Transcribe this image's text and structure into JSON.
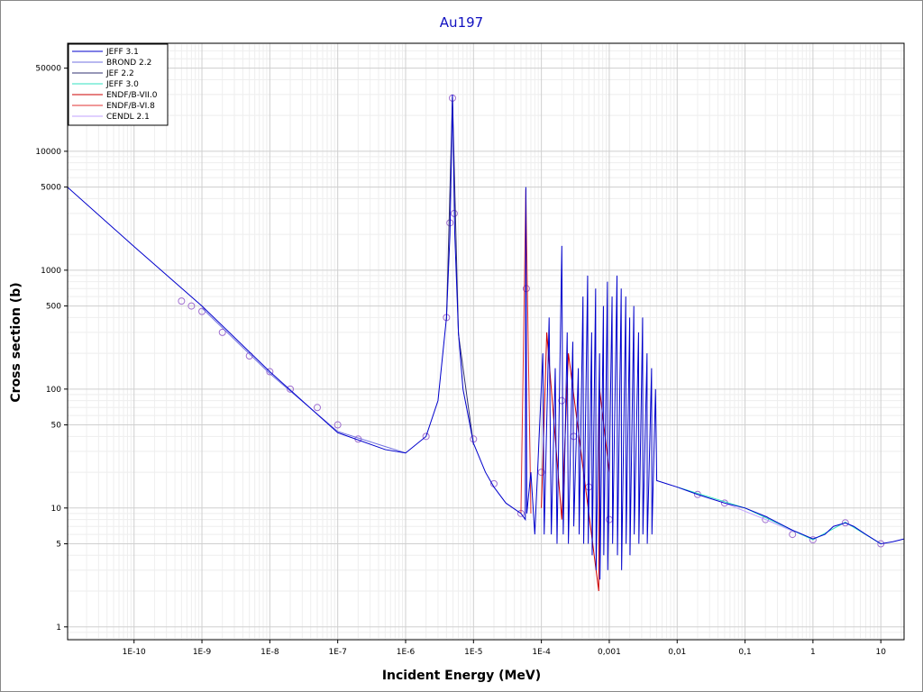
{
  "chart_data": {
    "type": "line",
    "title": "Au197",
    "x_label": "Incident Energy (MeV)",
    "y_label": "Cross section (b)",
    "log_x": true,
    "log_y": true,
    "grid": true,
    "legend": "top-left",
    "xlim": [
      1.05e-11,
      22
    ],
    "ylim": [
      0.78,
      81000
    ],
    "xticks": [
      {
        "value": 1e-10,
        "label": "1E-10"
      },
      {
        "value": 1e-09,
        "label": "1E-9"
      },
      {
        "value": 1e-08,
        "label": "1E-8"
      },
      {
        "value": 1e-07,
        "label": "1E-7"
      },
      {
        "value": 1e-06,
        "label": "1E-6"
      },
      {
        "value": 1e-05,
        "label": "1E-5"
      },
      {
        "value": 0.0001,
        "label": "1E-4"
      },
      {
        "value": 0.001,
        "label": "0,001"
      },
      {
        "value": 0.01,
        "label": "0,01"
      },
      {
        "value": 0.1,
        "label": "0,1"
      },
      1,
      10
    ],
    "yticks": [
      1,
      5,
      10,
      50,
      100,
      500,
      1000,
      5000,
      10000,
      50000
    ],
    "series": [
      {
        "name": "JEFF 3.1",
        "color": "#0000cc",
        "x": [
          1.05e-11,
          1e-10,
          1e-09,
          1e-08,
          1e-07,
          5e-07,
          1e-06,
          2e-06,
          3e-06,
          4e-06,
          4.5e-06,
          4.8e-06,
          4.9e-06,
          5e-06,
          5.3e-06,
          6e-06,
          7e-06,
          1e-05,
          1.5e-05,
          2e-05,
          3e-05,
          5e-05,
          5.8e-05,
          5.9e-05,
          6.1e-05,
          7e-05,
          8e-05,
          0.000105,
          0.00011,
          0.00013,
          0.00014,
          0.00016,
          0.00017,
          0.0002,
          0.00021,
          0.00024,
          0.00025,
          0.00029,
          0.0003,
          0.00035,
          0.00036,
          0.00041,
          0.00042,
          0.00048,
          0.00049,
          0.00055,
          0.00056,
          0.00063,
          0.00064,
          0.00072,
          0.00073,
          0.00082,
          0.00083,
          0.00094,
          0.00095,
          0.0011,
          0.00112,
          0.0013,
          0.00132,
          0.0015,
          0.00152,
          0.00175,
          0.00177,
          0.002,
          0.00202,
          0.0023,
          0.00233,
          0.0027,
          0.00273,
          0.0031,
          0.00313,
          0.0036,
          0.00363,
          0.0042,
          0.00425,
          0.0048,
          0.005,
          0.007,
          0.01,
          0.02,
          0.05,
          0.1,
          0.2,
          0.5,
          0.7,
          1,
          1.5,
          2,
          3,
          4,
          6,
          10,
          15,
          22
        ],
        "values": [
          4980,
          1580,
          500,
          140,
          43,
          31,
          29,
          40,
          80,
          400,
          2000,
          15000,
          30000,
          15000,
          2000,
          300,
          100,
          35,
          20,
          15,
          11,
          9,
          8,
          5000,
          9,
          20,
          6,
          200,
          6,
          400,
          6,
          150,
          5,
          1600,
          6,
          300,
          5,
          250,
          7,
          150,
          6,
          600,
          5,
          900,
          5,
          300,
          4,
          700,
          3,
          200,
          2.5,
          500,
          4,
          800,
          3,
          600,
          5,
          900,
          4,
          700,
          3,
          600,
          5,
          400,
          4,
          500,
          6,
          300,
          5,
          400,
          6,
          200,
          5,
          150,
          6,
          100,
          17,
          16,
          15,
          13,
          11,
          10,
          8.5,
          6.5,
          6,
          5.5,
          6,
          7,
          7.5,
          7,
          6,
          5,
          5.2,
          5.5
        ]
      },
      {
        "name": "BROND 2.2",
        "color": "#7070e0",
        "x": [
          1e-09,
          1e-08,
          1e-07,
          1e-06
        ],
        "values": [
          480,
          135,
          44,
          29
        ]
      },
      {
        "name": "JEF 2.2",
        "color": "#303070",
        "x": [
          4e-06,
          4.9e-06,
          6e-06,
          1e-05
        ],
        "values": [
          380,
          29000,
          290,
          34
        ]
      },
      {
        "name": "JEFF 3.0",
        "color": "#30e0c0",
        "x": [
          0.01,
          0.1,
          1,
          3,
          10
        ],
        "values": [
          15,
          10,
          5.4,
          7.6,
          5
        ]
      },
      {
        "name": "ENDF/B-VII.0",
        "color": "#cc0000",
        "x": [
          0.0001,
          0.00012,
          0.0002,
          0.00025,
          0.0007,
          0.00072,
          0.001
        ],
        "values": [
          10,
          300,
          8,
          200,
          2,
          100,
          20
        ]
      },
      {
        "name": "ENDF/B-VI.8",
        "color": "#e03030",
        "x": [
          5e-05,
          5.9e-05,
          7e-05
        ],
        "values": [
          9,
          4800,
          9
        ]
      },
      {
        "name": "CENDL 2.1",
        "color": "#c0a0ff",
        "x": [
          0.02,
          0.05,
          0.2,
          0.5
        ],
        "values": [
          13,
          11,
          8,
          6.4
        ]
      },
      {
        "color": "#a070d0",
        "marker": "circle",
        "x": [
          5e-10,
          7e-10,
          1e-09,
          2e-09,
          5e-09,
          1e-08,
          2e-08,
          5e-08,
          1e-07,
          2e-07,
          2e-06,
          4e-06,
          4.5e-06,
          4.9e-06,
          5.2e-06,
          1e-05,
          2e-05,
          5e-05,
          6e-05,
          0.0001,
          0.0002,
          0.0003,
          0.0005,
          0.001,
          0.02,
          0.05,
          0.2,
          0.5,
          1,
          3,
          10
        ],
        "values": [
          550,
          500,
          450,
          300,
          190,
          140,
          100,
          70,
          50,
          38,
          40,
          400,
          2500,
          28000,
          3000,
          38,
          16,
          9,
          700,
          20,
          80,
          40,
          15,
          8,
          13,
          11,
          8,
          6,
          5.4,
          7.5,
          5
        ]
      }
    ]
  }
}
